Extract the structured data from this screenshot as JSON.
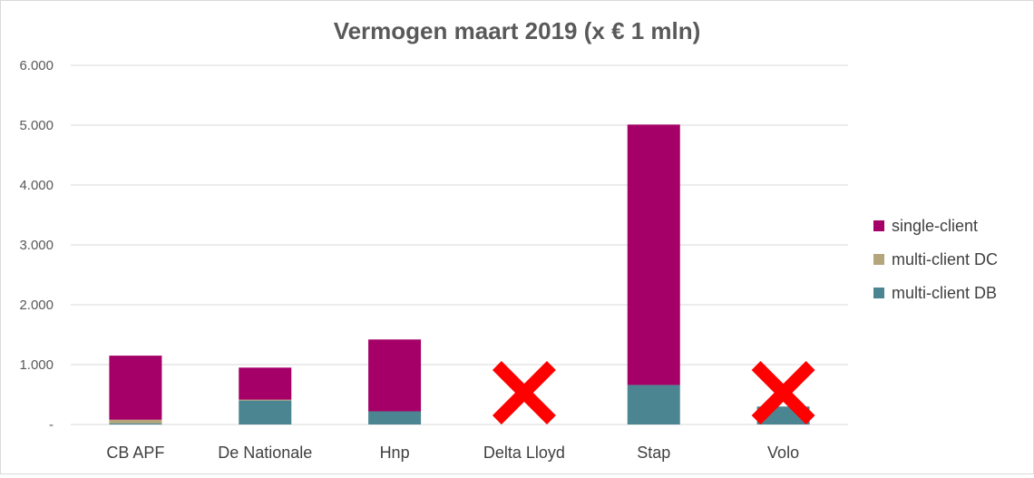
{
  "chart_data": {
    "type": "bar",
    "stacked": true,
    "title": "Vermogen maart 2019 (x € 1 mln)",
    "xlabel": "",
    "ylabel": "",
    "ylim": [
      0,
      6000
    ],
    "yticks": [
      {
        "value": 0,
        "label": "-"
      },
      {
        "value": 1000,
        "label": "1.000"
      },
      {
        "value": 2000,
        "label": "2.000"
      },
      {
        "value": 3000,
        "label": "3.000"
      },
      {
        "value": 4000,
        "label": "4.000"
      },
      {
        "value": 5000,
        "label": "5.000"
      },
      {
        "value": 6000,
        "label": "6.000"
      }
    ],
    "grid": true,
    "legend_position": "right",
    "categories": [
      "CB APF",
      "De Nationale",
      "Hnp",
      "Delta Lloyd",
      "Stap",
      "Volo"
    ],
    "series": [
      {
        "name": "multi-client DB",
        "color": "#4a8591",
        "values": [
          20,
          400,
          220,
          0,
          660,
          300
        ]
      },
      {
        "name": "multi-client DC",
        "color": "#b5a57b",
        "values": [
          60,
          15,
          0,
          0,
          0,
          0
        ]
      },
      {
        "name": "single-client",
        "color": "#a50067",
        "values": [
          1070,
          535,
          1200,
          0,
          4350,
          0
        ]
      }
    ],
    "legend_order": [
      "single-client",
      "multi-client DC",
      "multi-client DB"
    ],
    "annotations": [
      {
        "category": "Delta Lloyd",
        "mark": "red-cross-icon",
        "color": "#ff0000"
      },
      {
        "category": "Volo",
        "mark": "red-cross-icon",
        "color": "#ff0000"
      }
    ]
  }
}
